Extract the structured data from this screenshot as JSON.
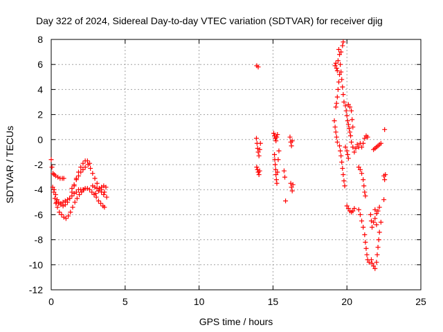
{
  "chart_data": {
    "type": "scatter",
    "title": "Day 322 of 2024, Sidereal Day-to-day VTEC variation (SDTVAR) for receiver djig",
    "xlabel": "GPS time / hours",
    "ylabel": "SDTVAR / TECUs",
    "xlim": [
      0,
      25
    ],
    "ylim": [
      -12,
      8
    ],
    "xticks": [
      0,
      5,
      10,
      15,
      20,
      25
    ],
    "yticks": [
      -12,
      -10,
      -8,
      -6,
      -4,
      -2,
      0,
      2,
      4,
      6,
      8
    ],
    "xtick_labels": [
      "0",
      "5",
      "10",
      "15",
      "20",
      "25"
    ],
    "ytick_labels": [
      "-12",
      "-10",
      "-8",
      "-6",
      "-4",
      "-2",
      "0",
      "2",
      "4",
      "6",
      "8"
    ],
    "grid": true,
    "marker": "+",
    "color": "#ff0000",
    "series": [
      {
        "name": "",
        "points": [
          [
            0.0,
            -1.6
          ],
          [
            0.05,
            -2.2
          ],
          [
            0.12,
            -2.7
          ],
          [
            0.2,
            -2.8
          ],
          [
            0.3,
            -2.9
          ],
          [
            0.45,
            -3.0
          ],
          [
            0.6,
            -3.1
          ],
          [
            0.75,
            -3.1
          ],
          [
            0.85,
            -3.1
          ],
          [
            0.1,
            -3.8
          ],
          [
            0.18,
            -4.2
          ],
          [
            0.25,
            -4.7
          ],
          [
            0.32,
            -5.1
          ],
          [
            0.42,
            -5.4
          ],
          [
            0.55,
            -5.8
          ],
          [
            0.7,
            -6.0
          ],
          [
            0.85,
            -6.2
          ],
          [
            1.0,
            -6.3
          ],
          [
            1.15,
            -6.1
          ],
          [
            1.3,
            -5.8
          ],
          [
            1.45,
            -5.4
          ],
          [
            1.6,
            -5.0
          ],
          [
            1.75,
            -4.7
          ],
          [
            1.9,
            -4.4
          ],
          [
            2.05,
            -4.2
          ],
          [
            2.2,
            -4.0
          ],
          [
            0.2,
            -4.0
          ],
          [
            0.3,
            -4.4
          ],
          [
            0.4,
            -4.8
          ],
          [
            0.5,
            -5.0
          ],
          [
            0.65,
            -5.2
          ],
          [
            0.8,
            -5.3
          ],
          [
            0.95,
            -5.2
          ],
          [
            1.1,
            -5.0
          ],
          [
            1.25,
            -4.7
          ],
          [
            1.4,
            -4.2
          ],
          [
            1.55,
            -3.7
          ],
          [
            1.7,
            -3.1
          ],
          [
            1.85,
            -2.6
          ],
          [
            2.0,
            -2.2
          ],
          [
            2.15,
            -1.9
          ],
          [
            2.3,
            -1.7
          ],
          [
            2.45,
            -1.7
          ],
          [
            2.6,
            -1.9
          ],
          [
            0.35,
            -5.0
          ],
          [
            0.5,
            -5.1
          ],
          [
            0.65,
            -5.1
          ],
          [
            0.8,
            -5.0
          ],
          [
            0.95,
            -4.9
          ],
          [
            1.1,
            -4.8
          ],
          [
            1.25,
            -4.7
          ],
          [
            1.4,
            -4.5
          ],
          [
            1.55,
            -4.3
          ],
          [
            1.7,
            -4.2
          ],
          [
            1.85,
            -4.0
          ],
          [
            2.0,
            -4.0
          ],
          [
            2.15,
            -4.0
          ],
          [
            2.3,
            -3.9
          ],
          [
            2.45,
            -3.9
          ],
          [
            1.4,
            -3.9
          ],
          [
            1.55,
            -3.6
          ],
          [
            1.7,
            -3.2
          ],
          [
            1.85,
            -2.9
          ],
          [
            2.0,
            -2.6
          ],
          [
            2.15,
            -2.4
          ],
          [
            2.3,
            -2.2
          ],
          [
            2.5,
            -2.0
          ],
          [
            2.65,
            -2.3
          ],
          [
            2.8,
            -2.7
          ],
          [
            2.95,
            -3.1
          ],
          [
            3.1,
            -3.5
          ],
          [
            3.25,
            -3.9
          ],
          [
            3.4,
            -4.2
          ],
          [
            3.55,
            -4.4
          ],
          [
            2.6,
            -4.0
          ],
          [
            2.75,
            -4.2
          ],
          [
            2.9,
            -4.4
          ],
          [
            3.05,
            -4.6
          ],
          [
            3.2,
            -4.9
          ],
          [
            3.35,
            -5.1
          ],
          [
            3.5,
            -5.3
          ],
          [
            3.6,
            -5.4
          ],
          [
            2.8,
            -3.7
          ],
          [
            2.95,
            -3.8
          ],
          [
            3.1,
            -3.9
          ],
          [
            3.25,
            -3.9
          ],
          [
            3.4,
            -3.8
          ],
          [
            3.55,
            -3.7
          ],
          [
            3.7,
            -3.8
          ],
          [
            3.0,
            -4.3
          ],
          [
            3.2,
            -4.1
          ],
          [
            3.4,
            -4.0
          ],
          [
            3.6,
            -4.2
          ],
          [
            3.75,
            -4.6
          ],
          [
            13.9,
            5.9
          ],
          [
            14.0,
            5.8
          ],
          [
            13.88,
            0.1
          ],
          [
            13.92,
            -0.3
          ],
          [
            13.96,
            -0.7
          ],
          [
            14.0,
            -1.0
          ],
          [
            14.05,
            -1.3
          ],
          [
            14.1,
            -0.8
          ],
          [
            14.15,
            -0.3
          ],
          [
            13.9,
            -2.2
          ],
          [
            13.95,
            -2.4
          ],
          [
            14.0,
            -2.6
          ],
          [
            14.05,
            -2.8
          ],
          [
            14.1,
            -2.5
          ],
          [
            15.05,
            0.5
          ],
          [
            15.1,
            0.3
          ],
          [
            15.15,
            0.1
          ],
          [
            15.2,
            -0.1
          ],
          [
            15.25,
            0.2
          ],
          [
            15.3,
            0.4
          ],
          [
            15.1,
            -1.2
          ],
          [
            15.12,
            -1.6
          ],
          [
            15.15,
            -2.0
          ],
          [
            15.18,
            -2.4
          ],
          [
            15.2,
            -2.8
          ],
          [
            15.23,
            -3.2
          ],
          [
            15.26,
            -3.5
          ],
          [
            15.3,
            -2.6
          ],
          [
            15.35,
            -1.6
          ],
          [
            15.4,
            -0.9
          ],
          [
            15.75,
            -2.5
          ],
          [
            15.8,
            -3.0
          ],
          [
            15.85,
            -4.9
          ],
          [
            16.15,
            0.2
          ],
          [
            16.2,
            -0.2
          ],
          [
            16.25,
            -0.5
          ],
          [
            16.3,
            -0.1
          ],
          [
            16.2,
            -3.5
          ],
          [
            16.25,
            -3.8
          ],
          [
            16.3,
            -4.1
          ],
          [
            16.35,
            -3.6
          ],
          [
            19.2,
            5.9
          ],
          [
            19.25,
            6.1
          ],
          [
            19.3,
            5.7
          ],
          [
            19.35,
            5.5
          ],
          [
            19.4,
            6.3
          ],
          [
            19.45,
            7.2
          ],
          [
            19.5,
            6.8
          ],
          [
            19.55,
            6.0
          ],
          [
            19.6,
            5.4
          ],
          [
            19.65,
            4.8
          ],
          [
            19.7,
            4.2
          ],
          [
            19.75,
            3.6
          ],
          [
            19.8,
            3.0
          ],
          [
            19.7,
            7.5
          ],
          [
            19.75,
            7.8
          ],
          [
            19.6,
            7.0
          ],
          [
            19.5,
            5.2
          ],
          [
            19.45,
            4.6
          ],
          [
            19.4,
            4.0
          ],
          [
            19.35,
            3.4
          ],
          [
            19.3,
            2.9
          ],
          [
            19.25,
            2.6
          ],
          [
            19.15,
            1.5
          ],
          [
            19.2,
            1.0
          ],
          [
            19.25,
            0.6
          ],
          [
            19.3,
            0.2
          ],
          [
            19.35,
            -0.2
          ],
          [
            19.5,
            -0.5
          ],
          [
            19.55,
            -0.9
          ],
          [
            19.6,
            -1.3
          ],
          [
            19.65,
            -1.8
          ],
          [
            19.7,
            -2.3
          ],
          [
            19.75,
            -2.8
          ],
          [
            19.8,
            -3.3
          ],
          [
            19.85,
            -3.7
          ],
          [
            19.9,
            2.7
          ],
          [
            19.95,
            2.3
          ],
          [
            20.0,
            1.9
          ],
          [
            20.05,
            1.5
          ],
          [
            20.1,
            1.2
          ],
          [
            20.15,
            0.9
          ],
          [
            20.2,
            0.6
          ],
          [
            20.25,
            0.3
          ],
          [
            20.1,
            2.8
          ],
          [
            20.2,
            2.6
          ],
          [
            20.3,
            2.3
          ],
          [
            20.35,
            1.6
          ],
          [
            20.4,
            1.0
          ],
          [
            19.9,
            -0.6
          ],
          [
            20.0,
            -0.9
          ],
          [
            20.05,
            -1.2
          ],
          [
            20.1,
            -1.5
          ],
          [
            20.0,
            -5.3
          ],
          [
            20.1,
            -5.5
          ],
          [
            20.2,
            -5.7
          ],
          [
            20.3,
            -5.8
          ],
          [
            20.4,
            -5.7
          ],
          [
            20.5,
            -5.5
          ],
          [
            20.3,
            -0.2
          ],
          [
            20.4,
            -0.6
          ],
          [
            20.5,
            -1.0
          ],
          [
            20.6,
            -0.7
          ],
          [
            20.7,
            -0.4
          ],
          [
            20.8,
            -0.6
          ],
          [
            20.8,
            -5.6
          ],
          [
            20.9,
            -6.0
          ],
          [
            21.0,
            -6.5
          ],
          [
            21.1,
            -7.0
          ],
          [
            21.2,
            -7.6
          ],
          [
            21.25,
            -8.2
          ],
          [
            21.3,
            -8.7
          ],
          [
            21.35,
            -9.2
          ],
          [
            21.4,
            -9.6
          ],
          [
            21.5,
            -9.8
          ],
          [
            20.8,
            -2.2
          ],
          [
            20.9,
            -2.4
          ],
          [
            21.0,
            -2.7
          ],
          [
            21.1,
            -3.2
          ],
          [
            21.15,
            -3.7
          ],
          [
            21.2,
            -4.2
          ],
          [
            21.25,
            -4.5
          ],
          [
            20.9,
            -0.3
          ],
          [
            21.0,
            -0.6
          ],
          [
            21.1,
            -0.3
          ],
          [
            21.2,
            0.1
          ],
          [
            21.3,
            0.3
          ],
          [
            21.4,
            0.2
          ],
          [
            21.6,
            -6.0
          ],
          [
            21.65,
            -6.5
          ],
          [
            21.7,
            -7.0
          ],
          [
            21.8,
            -6.6
          ],
          [
            21.9,
            -6.3
          ],
          [
            22.0,
            -6.8
          ],
          [
            21.65,
            -9.6
          ],
          [
            21.7,
            -9.9
          ],
          [
            21.8,
            -10.1
          ],
          [
            21.9,
            -10.3
          ],
          [
            22.0,
            -9.8
          ],
          [
            22.05,
            -9.2
          ],
          [
            22.1,
            -8.6
          ],
          [
            22.15,
            -8.0
          ],
          [
            22.2,
            -7.4
          ],
          [
            22.3,
            -6.6
          ],
          [
            21.8,
            -0.8
          ],
          [
            21.9,
            -0.7
          ],
          [
            22.0,
            -0.6
          ],
          [
            22.1,
            -0.5
          ],
          [
            22.2,
            -0.4
          ],
          [
            22.3,
            -0.3
          ],
          [
            21.9,
            -5.6
          ],
          [
            22.0,
            -5.9
          ],
          [
            22.1,
            -5.7
          ],
          [
            22.2,
            -5.4
          ],
          [
            22.55,
            0.8
          ],
          [
            22.5,
            -2.9
          ],
          [
            22.55,
            -3.2
          ],
          [
            22.6,
            -2.8
          ],
          [
            22.5,
            -4.8
          ]
        ]
      }
    ]
  }
}
